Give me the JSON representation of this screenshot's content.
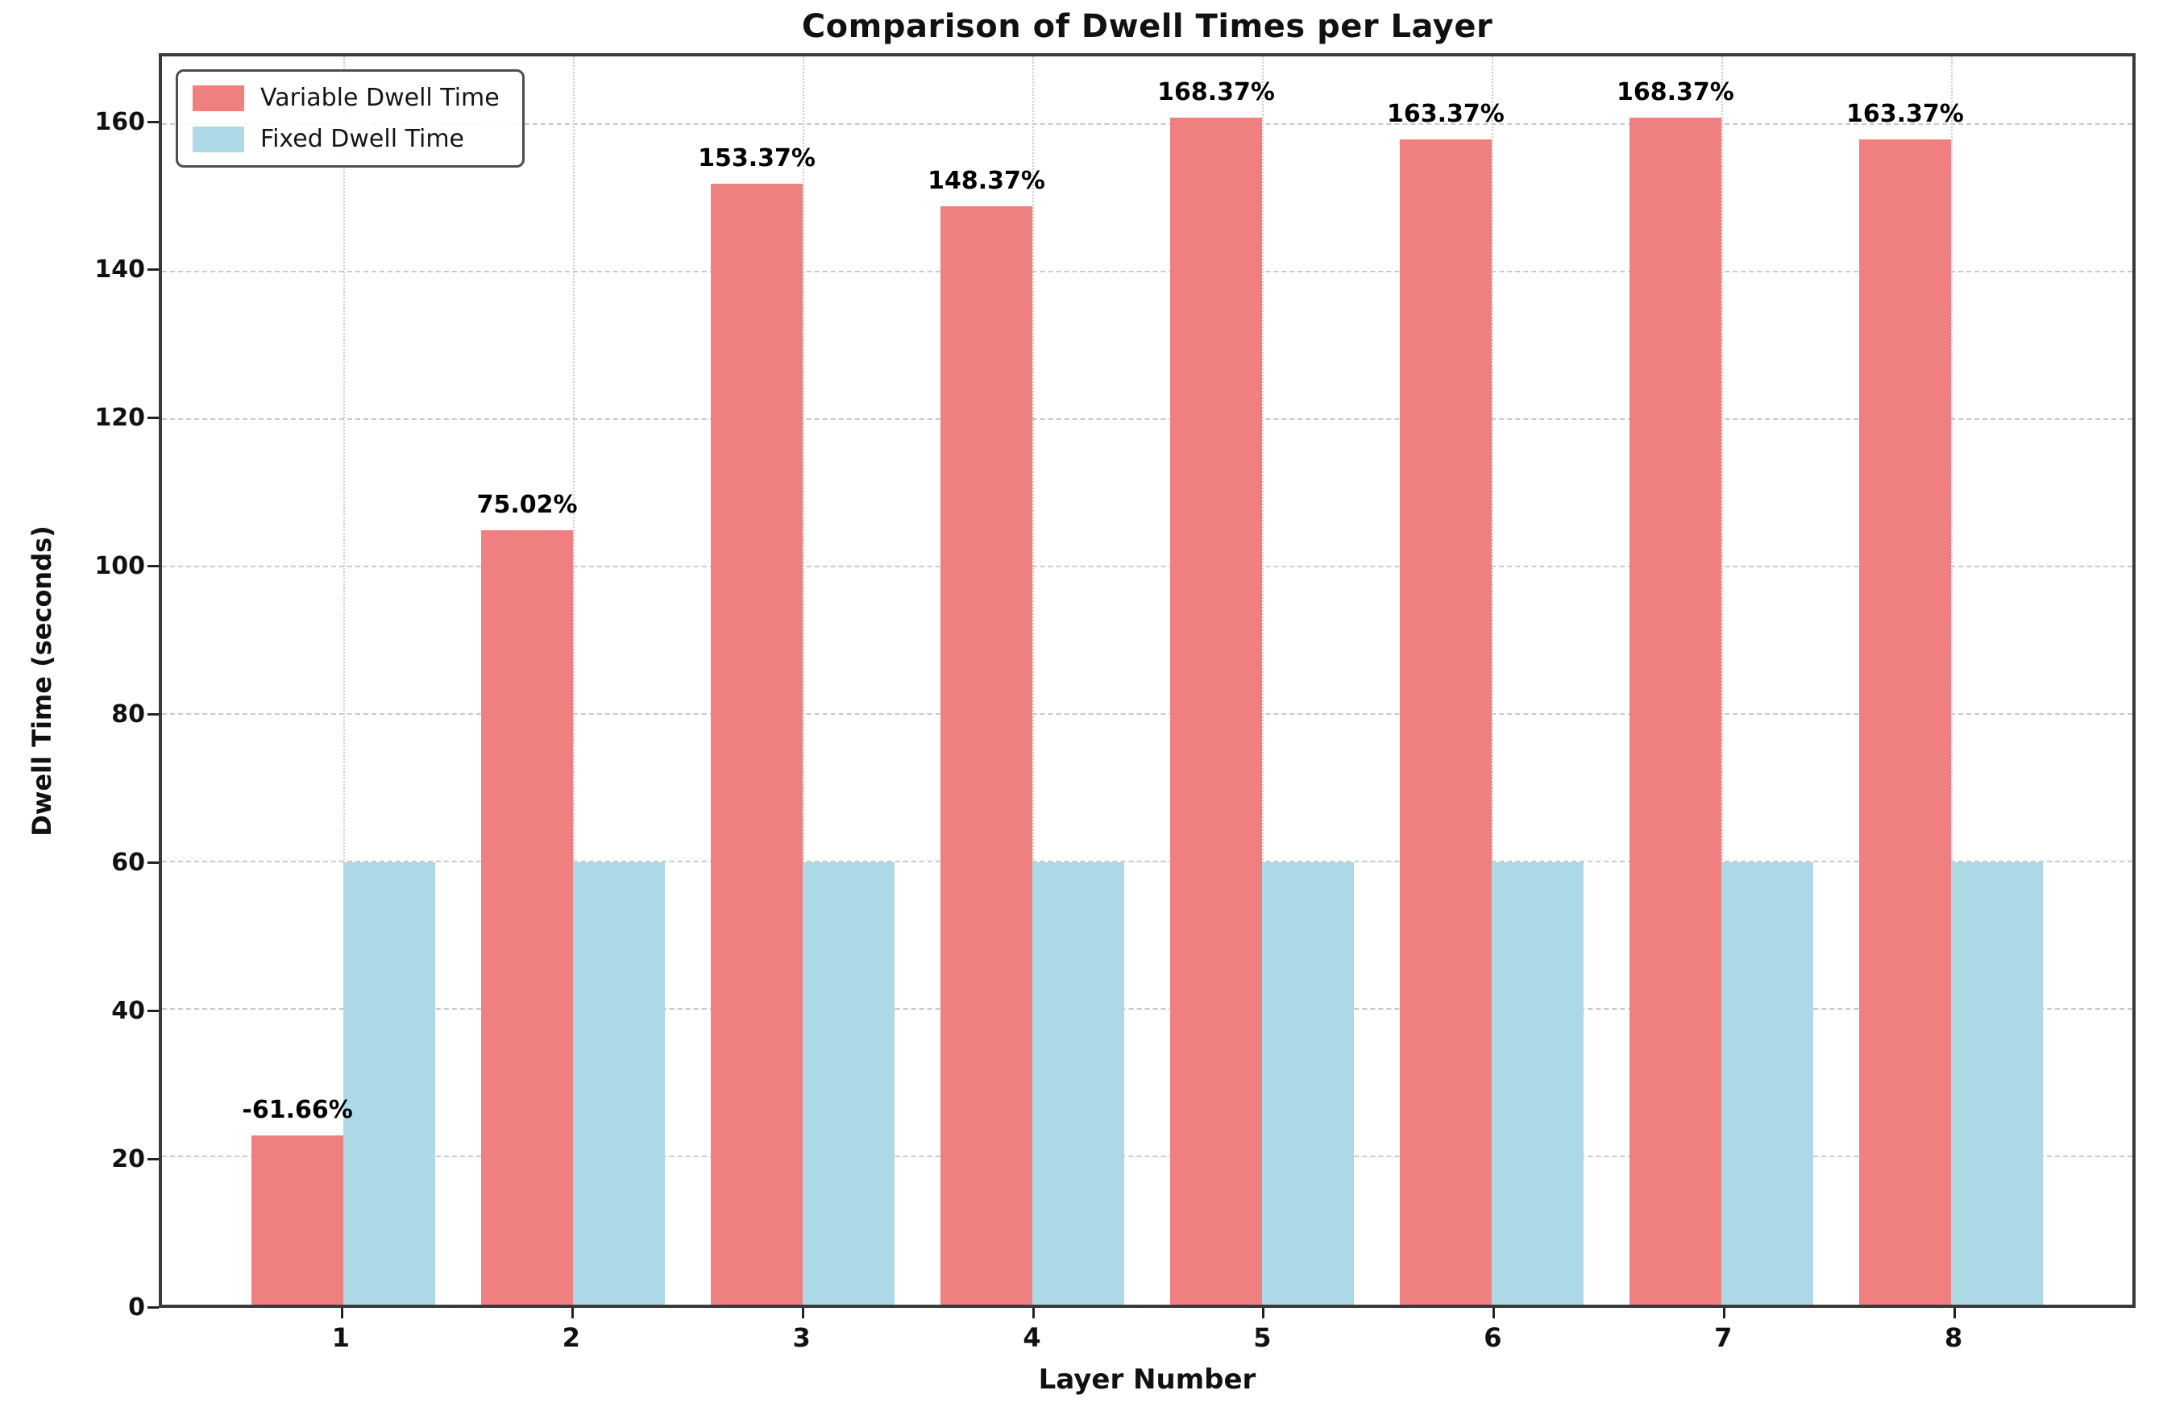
{
  "chart_data": {
    "type": "bar",
    "title": "Comparison of Dwell Times per Layer",
    "xlabel": "Layer Number",
    "ylabel": "Dwell Time (seconds)",
    "categories": [
      "1",
      "2",
      "3",
      "4",
      "5",
      "6",
      "7",
      "8"
    ],
    "x_positions": [
      1,
      2,
      3,
      4,
      5,
      6,
      7,
      8
    ],
    "series": [
      {
        "name": "Variable Dwell Time",
        "color": "#F08080",
        "values": [
          23,
          105,
          152,
          149,
          161,
          158,
          161,
          158
        ],
        "bar_labels": [
          "-61.66%",
          "75.02%",
          "153.37%",
          "148.37%",
          "168.37%",
          "163.37%",
          "168.37%",
          "163.37%"
        ]
      },
      {
        "name": "Fixed Dwell Time",
        "color": "#ADD8E6",
        "values": [
          60,
          60,
          60,
          60,
          60,
          60,
          60,
          60
        ],
        "bar_labels": [
          "",
          "",
          "",
          "",
          "",
          "",
          "",
          ""
        ]
      }
    ],
    "yticks": [
      0,
      20,
      40,
      60,
      80,
      100,
      120,
      140,
      160
    ],
    "ytick_labels": [
      "0",
      "20",
      "40",
      "60",
      "80",
      "100",
      "120",
      "140",
      "160"
    ],
    "ylim": [
      0,
      169.3
    ],
    "xlim": [
      0.21,
      8.79
    ],
    "bar_width": 0.4,
    "grid": "dashed",
    "legend_position": "upper-left",
    "colors": {
      "variable_bar": "#F08080",
      "fixed_bar": "#ADD8E6",
      "gridline": "#c9c9c9",
      "spine": "#3a3a3a",
      "text": "#000000"
    }
  }
}
